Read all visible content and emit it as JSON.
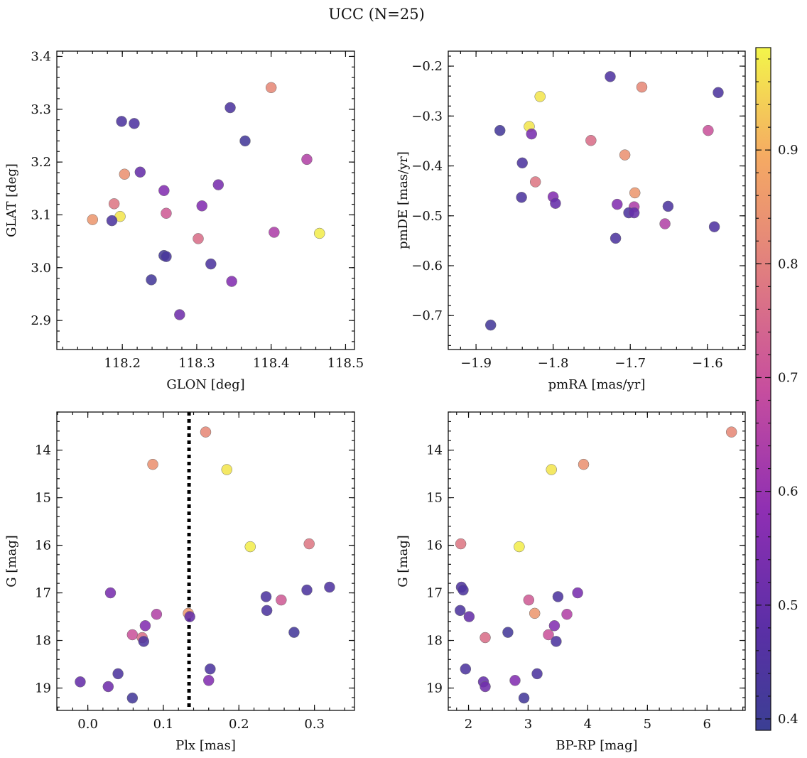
{
  "title": "UCC (N=25)",
  "chart_data": [
    {
      "type": "scatter",
      "xlabel": "GLON [deg]",
      "ylabel": "GLAT [deg]",
      "xlim": [
        118.112,
        118.512
      ],
      "ylim": [
        2.845,
        3.41
      ],
      "xticks": [
        118.2,
        118.3,
        118.4,
        118.5
      ],
      "xtick_labels": [
        "118.2",
        "118.3",
        "118.4",
        "118.5"
      ],
      "yticks": [
        2.9,
        3.0,
        3.1,
        3.2,
        3.3,
        3.4
      ],
      "ytick_labels": [
        "2.9",
        "3.0",
        "3.1",
        "3.2",
        "3.3",
        "3.4"
      ],
      "invert_y": false,
      "points": [
        {
          "x": 118.4,
          "y": 3.341,
          "c": 0.82
        },
        {
          "x": 118.345,
          "y": 3.303,
          "c": 0.44
        },
        {
          "x": 118.199,
          "y": 3.277,
          "c": 0.44
        },
        {
          "x": 118.216,
          "y": 3.273,
          "c": 0.45
        },
        {
          "x": 118.365,
          "y": 3.24,
          "c": 0.42
        },
        {
          "x": 118.448,
          "y": 3.205,
          "c": 0.65
        },
        {
          "x": 118.203,
          "y": 3.177,
          "c": 0.84
        },
        {
          "x": 118.224,
          "y": 3.181,
          "c": 0.5
        },
        {
          "x": 118.329,
          "y": 3.157,
          "c": 0.54
        },
        {
          "x": 118.256,
          "y": 3.146,
          "c": 0.56
        },
        {
          "x": 118.189,
          "y": 3.121,
          "c": 0.78
        },
        {
          "x": 118.307,
          "y": 3.117,
          "c": 0.56
        },
        {
          "x": 118.259,
          "y": 3.103,
          "c": 0.72
        },
        {
          "x": 118.197,
          "y": 3.097,
          "c": 0.97
        },
        {
          "x": 118.16,
          "y": 3.091,
          "c": 0.85
        },
        {
          "x": 118.186,
          "y": 3.089,
          "c": 0.44
        },
        {
          "x": 118.465,
          "y": 3.065,
          "c": 0.98
        },
        {
          "x": 118.404,
          "y": 3.067,
          "c": 0.64
        },
        {
          "x": 118.302,
          "y": 3.055,
          "c": 0.76
        },
        {
          "x": 118.256,
          "y": 3.023,
          "c": 0.42
        },
        {
          "x": 118.259,
          "y": 3.021,
          "c": 0.43
        },
        {
          "x": 118.319,
          "y": 3.007,
          "c": 0.44
        },
        {
          "x": 118.239,
          "y": 2.977,
          "c": 0.42
        },
        {
          "x": 118.347,
          "y": 2.974,
          "c": 0.56
        },
        {
          "x": 118.277,
          "y": 2.911,
          "c": 0.52
        }
      ]
    },
    {
      "type": "scatter",
      "xlabel": "pmRA [mas/yr]",
      "ylabel": "pmDE [mas/yr]",
      "xlim": [
        -1.936,
        -1.551
      ],
      "ylim": [
        -0.768,
        -0.17
      ],
      "xticks": [
        -1.9,
        -1.8,
        -1.7,
        -1.6
      ],
      "xtick_labels": [
        "−1.9",
        "−1.8",
        "−1.7",
        "−1.6"
      ],
      "yticks": [
        -0.7,
        -0.6,
        -0.5,
        -0.4,
        -0.3,
        -0.2
      ],
      "ytick_labels": [
        "−0.7",
        "−0.6",
        "−0.5",
        "−0.4",
        "−0.3",
        "−0.2"
      ],
      "invert_y": false,
      "points": [
        {
          "x": -1.726,
          "y": -0.221,
          "c": 0.45
        },
        {
          "x": -1.685,
          "y": -0.242,
          "c": 0.82
        },
        {
          "x": -1.586,
          "y": -0.253,
          "c": 0.44
        },
        {
          "x": -1.817,
          "y": -0.261,
          "c": 0.97
        },
        {
          "x": -1.831,
          "y": -0.321,
          "c": 0.97
        },
        {
          "x": -1.869,
          "y": -0.329,
          "c": 0.42
        },
        {
          "x": -1.599,
          "y": -0.329,
          "c": 0.7
        },
        {
          "x": -1.828,
          "y": -0.336,
          "c": 0.54
        },
        {
          "x": -1.751,
          "y": -0.349,
          "c": 0.76
        },
        {
          "x": -1.707,
          "y": -0.378,
          "c": 0.84
        },
        {
          "x": -1.84,
          "y": -0.394,
          "c": 0.44
        },
        {
          "x": -1.823,
          "y": -0.432,
          "c": 0.78
        },
        {
          "x": -1.694,
          "y": -0.454,
          "c": 0.85
        },
        {
          "x": -1.841,
          "y": -0.463,
          "c": 0.44
        },
        {
          "x": -1.8,
          "y": -0.462,
          "c": 0.56
        },
        {
          "x": -1.797,
          "y": -0.475,
          "c": 0.5
        },
        {
          "x": -1.717,
          "y": -0.477,
          "c": 0.56
        },
        {
          "x": -1.651,
          "y": -0.481,
          "c": 0.44
        },
        {
          "x": -1.695,
          "y": -0.482,
          "c": 0.64
        },
        {
          "x": -1.702,
          "y": -0.494,
          "c": 0.44
        },
        {
          "x": -1.695,
          "y": -0.494,
          "c": 0.5
        },
        {
          "x": -1.655,
          "y": -0.516,
          "c": 0.65
        },
        {
          "x": -1.591,
          "y": -0.522,
          "c": 0.45
        },
        {
          "x": -1.719,
          "y": -0.545,
          "c": 0.44
        },
        {
          "x": -1.881,
          "y": -0.719,
          "c": 0.42
        }
      ]
    },
    {
      "type": "scatter",
      "xlabel": "Plx [mas]",
      "ylabel": "G [mag]",
      "xlim": [
        -0.041,
        0.353
      ],
      "ylim": [
        19.47,
        13.2
      ],
      "xticks": [
        0.0,
        0.1,
        0.2,
        0.3
      ],
      "xtick_labels": [
        "0.0",
        "0.1",
        "0.2",
        "0.3"
      ],
      "yticks": [
        14,
        15,
        16,
        17,
        18,
        19
      ],
      "ytick_labels": [
        "14",
        "15",
        "16",
        "17",
        "18",
        "19"
      ],
      "invert_y": true,
      "vline": {
        "x": 0.134,
        "style": "dotted",
        "color": "#000000"
      },
      "points": [
        {
          "x": 0.156,
          "y": 13.62,
          "c": 0.82
        },
        {
          "x": 0.086,
          "y": 14.3,
          "c": 0.84
        },
        {
          "x": 0.184,
          "y": 14.41,
          "c": 0.97
        },
        {
          "x": 0.215,
          "y": 16.03,
          "c": 0.98
        },
        {
          "x": 0.293,
          "y": 15.97,
          "c": 0.78
        },
        {
          "x": 0.03,
          "y": 17.0,
          "c": 0.54
        },
        {
          "x": 0.32,
          "y": 16.88,
          "c": 0.45
        },
        {
          "x": 0.29,
          "y": 16.94,
          "c": 0.44
        },
        {
          "x": 0.236,
          "y": 17.08,
          "c": 0.44
        },
        {
          "x": 0.256,
          "y": 17.15,
          "c": 0.72
        },
        {
          "x": 0.237,
          "y": 17.37,
          "c": 0.44
        },
        {
          "x": 0.091,
          "y": 17.45,
          "c": 0.65
        },
        {
          "x": 0.133,
          "y": 17.43,
          "c": 0.85
        },
        {
          "x": 0.135,
          "y": 17.5,
          "c": 0.5
        },
        {
          "x": 0.076,
          "y": 17.69,
          "c": 0.56
        },
        {
          "x": 0.273,
          "y": 17.83,
          "c": 0.42
        },
        {
          "x": 0.059,
          "y": 17.88,
          "c": 0.7
        },
        {
          "x": 0.072,
          "y": 17.94,
          "c": 0.76
        },
        {
          "x": 0.074,
          "y": 18.02,
          "c": 0.44
        },
        {
          "x": 0.162,
          "y": 18.6,
          "c": 0.44
        },
        {
          "x": 0.04,
          "y": 18.7,
          "c": 0.44
        },
        {
          "x": -0.01,
          "y": 18.87,
          "c": 0.5
        },
        {
          "x": 0.16,
          "y": 18.84,
          "c": 0.56
        },
        {
          "x": 0.027,
          "y": 18.97,
          "c": 0.52
        },
        {
          "x": 0.059,
          "y": 19.21,
          "c": 0.42
        }
      ]
    },
    {
      "type": "scatter",
      "xlabel": "BP-RP [mag]",
      "ylabel": "G [mag]",
      "xlim": [
        1.66,
        6.64
      ],
      "ylim": [
        19.47,
        13.2
      ],
      "xticks": [
        2,
        3,
        4,
        5,
        6
      ],
      "xtick_labels": [
        "2",
        "3",
        "4",
        "5",
        "6"
      ],
      "yticks": [
        14,
        15,
        16,
        17,
        18,
        19
      ],
      "ytick_labels": [
        "14",
        "15",
        "16",
        "17",
        "18",
        "19"
      ],
      "invert_y": true,
      "points": [
        {
          "x": 6.41,
          "y": 13.62,
          "c": 0.82
        },
        {
          "x": 3.93,
          "y": 14.3,
          "c": 0.84
        },
        {
          "x": 3.39,
          "y": 14.41,
          "c": 0.97
        },
        {
          "x": 1.87,
          "y": 15.97,
          "c": 0.78
        },
        {
          "x": 2.85,
          "y": 16.03,
          "c": 0.98
        },
        {
          "x": 1.88,
          "y": 16.88,
          "c": 0.45
        },
        {
          "x": 1.91,
          "y": 16.94,
          "c": 0.44
        },
        {
          "x": 3.83,
          "y": 17.0,
          "c": 0.54
        },
        {
          "x": 3.5,
          "y": 17.08,
          "c": 0.44
        },
        {
          "x": 3.01,
          "y": 17.15,
          "c": 0.72
        },
        {
          "x": 1.86,
          "y": 17.37,
          "c": 0.44
        },
        {
          "x": 3.11,
          "y": 17.43,
          "c": 0.85
        },
        {
          "x": 3.65,
          "y": 17.45,
          "c": 0.65
        },
        {
          "x": 2.01,
          "y": 17.5,
          "c": 0.5
        },
        {
          "x": 3.44,
          "y": 17.69,
          "c": 0.56
        },
        {
          "x": 2.66,
          "y": 17.83,
          "c": 0.42
        },
        {
          "x": 3.34,
          "y": 17.88,
          "c": 0.7
        },
        {
          "x": 2.28,
          "y": 17.94,
          "c": 0.76
        },
        {
          "x": 3.47,
          "y": 18.02,
          "c": 0.44
        },
        {
          "x": 1.95,
          "y": 18.6,
          "c": 0.44
        },
        {
          "x": 3.15,
          "y": 18.7,
          "c": 0.44
        },
        {
          "x": 2.78,
          "y": 18.84,
          "c": 0.56
        },
        {
          "x": 2.25,
          "y": 18.87,
          "c": 0.5
        },
        {
          "x": 2.28,
          "y": 18.97,
          "c": 0.52
        },
        {
          "x": 2.93,
          "y": 19.21,
          "c": 0.42
        }
      ]
    }
  ],
  "colorbar": {
    "colormap": "plasma",
    "range": [
      0.39,
      0.99
    ],
    "ticks": [
      0.4,
      0.5,
      0.6,
      0.7,
      0.8,
      0.9
    ],
    "tick_labels": [
      "0.4",
      "0.5",
      "0.6",
      "0.7",
      "0.8",
      "0.9"
    ]
  }
}
